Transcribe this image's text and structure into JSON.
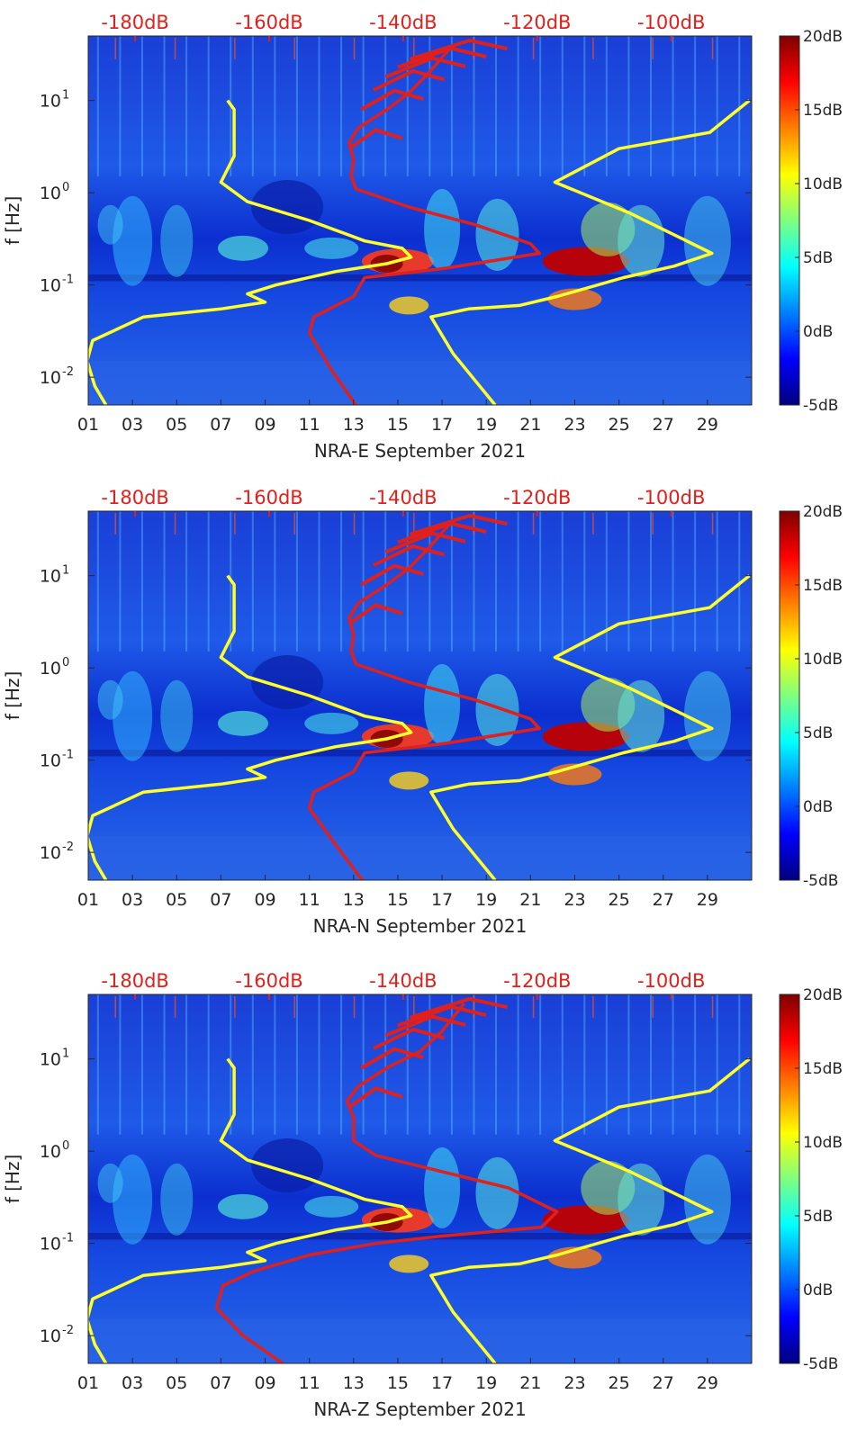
{
  "chart_data": [
    {
      "type": "heatmap",
      "name": "nra-e",
      "title": "",
      "xlabel": "NRA-E September 2021",
      "ylabel": "f [Hz]",
      "x_ticks": [
        "01",
        "03",
        "05",
        "07",
        "09",
        "11",
        "13",
        "15",
        "17",
        "19",
        "21",
        "23",
        "25",
        "27",
        "29"
      ],
      "xlim": [
        1,
        31
      ],
      "y_scale": "log",
      "ylim": [
        0.005,
        50
      ],
      "y_ticks": [
        {
          "value": 10,
          "base": "10",
          "exp": "1"
        },
        {
          "value": 1,
          "base": "10",
          "exp": "0"
        },
        {
          "value": 0.1,
          "base": "10",
          "exp": "-1"
        },
        {
          "value": 0.01,
          "base": "10",
          "exp": "-2"
        }
      ],
      "top_axis_ticks": [
        {
          "label": "-180dB",
          "value": -180
        },
        {
          "label": "-160dB",
          "value": -160
        },
        {
          "label": "-140dB",
          "value": -140
        },
        {
          "label": "-120dB",
          "value": -120
        },
        {
          "label": "-100dB",
          "value": -100
        }
      ],
      "top_axis_range_db": [
        -187,
        -88
      ],
      "colorbar": {
        "colormap": "jet",
        "range": [
          -5,
          20
        ],
        "ticks": [
          "20dB",
          "15dB",
          "10dB",
          "5dB",
          "0dB",
          "-5dB"
        ]
      },
      "series": [
        {
          "name": "yellow-curve-left",
          "color": "#ffff2a",
          "x_days": [
            7.3,
            7.6,
            7.6,
            7.0,
            8.2,
            11.0,
            13.5,
            15.2,
            15.6,
            14.5,
            12.2,
            9.5,
            8.2,
            9.0,
            7.0,
            3.5,
            1.2,
            0.95,
            1.3,
            1.8
          ],
          "f_hz": [
            10,
            8,
            2.5,
            1.3,
            0.8,
            0.5,
            0.3,
            0.25,
            0.2,
            0.17,
            0.14,
            0.1,
            0.08,
            0.065,
            0.055,
            0.045,
            0.025,
            0.015,
            0.008,
            0.005
          ]
        },
        {
          "name": "yellow-curve-right",
          "color": "#ffff2a",
          "x_days": [
            30.9,
            29.1,
            25.0,
            22.1,
            25.5,
            29.2,
            27.5,
            25.2,
            22.2,
            20.5,
            18.2,
            16.5,
            17.5,
            19.4
          ],
          "f_hz": [
            10,
            4.5,
            3.0,
            1.3,
            0.6,
            0.22,
            0.16,
            0.12,
            0.075,
            0.06,
            0.055,
            0.045,
            0.018,
            0.005
          ]
        },
        {
          "name": "red-curve",
          "color": "#e0201c",
          "x_days": [
            17.5,
            16.4,
            15.5,
            14.5,
            13.2,
            12.8,
            13.0,
            12.9,
            13.1,
            15.5,
            18.5,
            21.0,
            21.4,
            17.0,
            13.5,
            13.0,
            11.2,
            11.0,
            12.0,
            13.1
          ],
          "f_hz": [
            40,
            20,
            12,
            8,
            5,
            3.5,
            2.3,
            1.5,
            1.1,
            0.7,
            0.45,
            0.28,
            0.22,
            0.15,
            0.12,
            0.075,
            0.045,
            0.03,
            0.012,
            0.005
          ]
        }
      ]
    },
    {
      "type": "heatmap",
      "name": "nra-n",
      "title": "",
      "xlabel": "NRA-N September 2021",
      "ylabel": "f [Hz]",
      "x_ticks": [
        "01",
        "03",
        "05",
        "07",
        "09",
        "11",
        "13",
        "15",
        "17",
        "19",
        "21",
        "23",
        "25",
        "27",
        "29"
      ],
      "xlim": [
        1,
        31
      ],
      "y_scale": "log",
      "ylim": [
        0.005,
        50
      ],
      "y_ticks": [
        {
          "value": 10,
          "base": "10",
          "exp": "1"
        },
        {
          "value": 1,
          "base": "10",
          "exp": "0"
        },
        {
          "value": 0.1,
          "base": "10",
          "exp": "-1"
        },
        {
          "value": 0.01,
          "base": "10",
          "exp": "-2"
        }
      ],
      "top_axis_ticks": [
        {
          "label": "-180dB",
          "value": -180
        },
        {
          "label": "-160dB",
          "value": -160
        },
        {
          "label": "-140dB",
          "value": -140
        },
        {
          "label": "-120dB",
          "value": -120
        },
        {
          "label": "-100dB",
          "value": -100
        }
      ],
      "top_axis_range_db": [
        -187,
        -88
      ],
      "colorbar": {
        "colormap": "jet",
        "range": [
          -5,
          20
        ],
        "ticks": [
          "20dB",
          "15dB",
          "10dB",
          "5dB",
          "0dB",
          "-5dB"
        ]
      },
      "series": [
        {
          "name": "yellow-curve-left",
          "color": "#ffff2a",
          "x_days": [
            7.3,
            7.6,
            7.6,
            7.0,
            8.2,
            11.0,
            13.5,
            15.2,
            15.6,
            14.5,
            12.2,
            9.5,
            8.2,
            9.0,
            7.0,
            3.5,
            1.2,
            0.95,
            1.3,
            1.8
          ],
          "f_hz": [
            10,
            8,
            2.5,
            1.3,
            0.8,
            0.5,
            0.3,
            0.25,
            0.2,
            0.17,
            0.14,
            0.1,
            0.08,
            0.065,
            0.055,
            0.045,
            0.025,
            0.015,
            0.008,
            0.005
          ]
        },
        {
          "name": "yellow-curve-right",
          "color": "#ffff2a",
          "x_days": [
            30.9,
            29.1,
            25.0,
            22.1,
            25.5,
            29.2,
            27.5,
            25.2,
            22.2,
            20.5,
            18.2,
            16.5,
            17.5,
            19.4
          ],
          "f_hz": [
            10,
            4.5,
            3.0,
            1.3,
            0.6,
            0.22,
            0.16,
            0.12,
            0.075,
            0.06,
            0.055,
            0.045,
            0.018,
            0.005
          ]
        },
        {
          "name": "red-curve",
          "color": "#e0201c",
          "x_days": [
            17.5,
            16.4,
            15.5,
            14.5,
            13.2,
            12.8,
            13.0,
            12.9,
            13.1,
            15.5,
            18.5,
            21.0,
            21.4,
            17.0,
            13.5,
            13.0,
            11.2,
            11.0,
            12.2,
            13.4
          ],
          "f_hz": [
            40,
            20,
            12,
            8,
            5,
            3.5,
            2.3,
            1.5,
            1.1,
            0.7,
            0.45,
            0.28,
            0.22,
            0.15,
            0.12,
            0.075,
            0.045,
            0.03,
            0.012,
            0.005
          ]
        }
      ]
    },
    {
      "type": "heatmap",
      "name": "nra-z",
      "title": "",
      "xlabel": "NRA-Z September 2021",
      "ylabel": "f [Hz]",
      "x_ticks": [
        "01",
        "03",
        "05",
        "07",
        "09",
        "11",
        "13",
        "15",
        "17",
        "19",
        "21",
        "23",
        "25",
        "27",
        "29"
      ],
      "xlim": [
        1,
        31
      ],
      "y_scale": "log",
      "ylim": [
        0.005,
        50
      ],
      "y_ticks": [
        {
          "value": 10,
          "base": "10",
          "exp": "1"
        },
        {
          "value": 1,
          "base": "10",
          "exp": "0"
        },
        {
          "value": 0.1,
          "base": "10",
          "exp": "-1"
        },
        {
          "value": 0.01,
          "base": "10",
          "exp": "-2"
        }
      ],
      "top_axis_ticks": [
        {
          "label": "-180dB",
          "value": -180
        },
        {
          "label": "-160dB",
          "value": -160
        },
        {
          "label": "-140dB",
          "value": -140
        },
        {
          "label": "-120dB",
          "value": -120
        },
        {
          "label": "-100dB",
          "value": -100
        }
      ],
      "top_axis_range_db": [
        -187,
        -88
      ],
      "colorbar": {
        "colormap": "jet",
        "range": [
          -5,
          20
        ],
        "ticks": [
          "20dB",
          "15dB",
          "10dB",
          "5dB",
          "0dB",
          "-5dB"
        ]
      },
      "series": [
        {
          "name": "yellow-curve-left",
          "color": "#ffff2a",
          "x_days": [
            7.3,
            7.6,
            7.6,
            7.0,
            8.2,
            11.0,
            13.5,
            15.2,
            15.6,
            14.5,
            12.2,
            9.5,
            8.2,
            9.0,
            7.0,
            3.5,
            1.2,
            0.95,
            1.3,
            1.8
          ],
          "f_hz": [
            10,
            8,
            2.5,
            1.3,
            0.8,
            0.5,
            0.3,
            0.25,
            0.2,
            0.17,
            0.14,
            0.1,
            0.08,
            0.065,
            0.055,
            0.045,
            0.025,
            0.015,
            0.008,
            0.005
          ]
        },
        {
          "name": "yellow-curve-right",
          "color": "#ffff2a",
          "x_days": [
            30.9,
            29.1,
            25.0,
            22.1,
            25.5,
            29.2,
            27.5,
            25.2,
            22.2,
            20.5,
            18.2,
            16.5,
            17.5,
            19.4
          ],
          "f_hz": [
            10,
            4.5,
            3.0,
            1.3,
            0.6,
            0.22,
            0.16,
            0.12,
            0.075,
            0.06,
            0.055,
            0.045,
            0.018,
            0.005
          ]
        },
        {
          "name": "red-curve",
          "color": "#e0201c",
          "x_days": [
            18.0,
            17.0,
            16.0,
            14.5,
            13.2,
            12.7,
            13.0,
            13.0,
            14.0,
            17.0,
            20.0,
            22.2,
            21.5,
            17.0,
            14.0,
            11.0,
            8.5,
            7.1,
            6.8,
            8.0,
            9.8
          ],
          "f_hz": [
            40,
            20,
            12,
            8,
            5,
            3.5,
            2.3,
            1.3,
            0.9,
            0.6,
            0.4,
            0.22,
            0.15,
            0.12,
            0.1,
            0.075,
            0.05,
            0.035,
            0.02,
            0.01,
            0.005
          ]
        }
      ]
    }
  ]
}
